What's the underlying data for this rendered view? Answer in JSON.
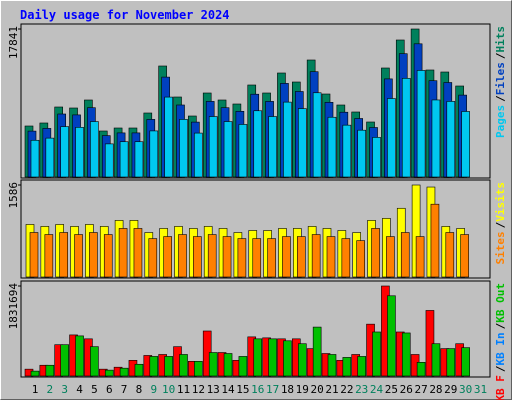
{
  "title": "Daily usage for November 2024",
  "legend_separator": "/",
  "highlight_indices": [
    1,
    2,
    8,
    9,
    15,
    16,
    22,
    23,
    29,
    30
  ],
  "highlight_color": "#00805c",
  "chart_data": [
    {
      "type": "bar",
      "ylim": [
        0,
        17841
      ],
      "yticks": [
        17841
      ],
      "legend_reversed": true,
      "series": [
        {
          "name": "Hits",
          "color": "#00805c",
          "values": [
            6148,
            6510,
            8438,
            8318,
            9282,
            5545,
            5907,
            5907,
            7715,
            13381,
            9644,
            7353,
            10126,
            9282,
            8800,
            11090,
            10126,
            12537,
            11452,
            14104,
            10005,
            8679,
            7836,
            6630,
            13140,
            16515,
            17841,
            12899,
            12657,
            10970,
            null
          ]
        },
        {
          "name": "Files",
          "color": "#0040c0",
          "values": [
            5533,
            5859,
            7594,
            7486,
            8354,
            4991,
            5316,
            5316,
            6944,
            12043,
            8680,
            6618,
            9113,
            8354,
            7920,
            9981,
            9113,
            11283,
            10307,
            12694,
            9005,
            7811,
            7052,
            5967,
            11826,
            14864,
            16057,
            11609,
            11391,
            9873,
            null
          ]
        },
        {
          "name": "Pages",
          "color": "#00c8f0",
          "values": [
            4427,
            4687,
            6075,
            5989,
            6683,
            3992,
            4253,
            4253,
            5555,
            9634,
            6944,
            5294,
            7291,
            6683,
            6336,
            7985,
            7291,
            9027,
            8245,
            10155,
            7204,
            6249,
            5642,
            4774,
            9461,
            11891,
            12846,
            9287,
            9113,
            7898,
            null
          ]
        }
      ]
    },
    {
      "type": "bar",
      "ylim": [
        0,
        1586
      ],
      "yticks": [
        1586
      ],
      "legend_reversed": true,
      "series": [
        {
          "name": "Visits",
          "color": "#ffff00",
          "values": [
            906,
            872,
            906,
            872,
            906,
            872,
            976,
            976,
            767,
            837,
            872,
            837,
            872,
            837,
            767,
            802,
            802,
            837,
            837,
            872,
            837,
            802,
            767,
            976,
            1011,
            1185,
            1586,
            1551,
            872,
            837,
            null
          ]
        },
        {
          "name": "Sites",
          "color": "#ff8000",
          "values": [
            767,
            732,
            767,
            732,
            767,
            732,
            837,
            837,
            662,
            697,
            732,
            697,
            732,
            697,
            662,
            662,
            662,
            697,
            697,
            732,
            697,
            662,
            627,
            837,
            697,
            767,
            697,
            1255,
            767,
            732,
            null
          ]
        }
      ]
    },
    {
      "type": "bar",
      "ylim": [
        0,
        1831694
      ],
      "yticks": [
        1831694
      ],
      "legend_reversed": false,
      "categories": [
        "1",
        "2",
        "3",
        "4",
        "5",
        "6",
        "7",
        "8",
        "9",
        "10",
        "11",
        "12",
        "13",
        "14",
        "15",
        "16",
        "17",
        "18",
        "19",
        "20",
        "21",
        "22",
        "23",
        "24",
        "25",
        "26",
        "27",
        "28",
        "29",
        "30",
        "31"
      ],
      "series": [
        {
          "name": "KB F",
          "color": "#ff0000",
          "values": [
            139370,
            219010,
            637120,
            836220,
            756580,
            139370,
            179190,
            318560,
            418110,
            438020,
            597300,
            298650,
            915860,
            477840,
            318560,
            796400,
            776490,
            756580,
            756580,
            557480,
            457930,
            318560,
            438020,
            1055230,
            1831694,
            895950,
            438020,
            1333970,
            557480,
            657030,
            null
          ]
        },
        {
          "name": "KB In",
          "color": "#0080ff",
          "values": [
            0,
            0,
            0,
            0,
            0,
            0,
            0,
            0,
            0,
            0,
            0,
            0,
            0,
            0,
            0,
            0,
            0,
            0,
            0,
            0,
            0,
            0,
            0,
            0,
            0,
            0,
            0,
            0,
            0,
            0,
            null
          ]
        },
        {
          "name": "KB Out",
          "color": "#00c000",
          "values": [
            99550,
            219010,
            637120,
            816310,
            597300,
            119460,
            159280,
            238920,
            398200,
            398200,
            438020,
            298650,
            477840,
            457930,
            398200,
            756580,
            756580,
            716760,
            657030,
            995500,
            438020,
            378290,
            398200,
            895950,
            1632620,
            876040,
            278740,
            657030,
            557480,
            577390,
            null
          ]
        }
      ]
    }
  ]
}
